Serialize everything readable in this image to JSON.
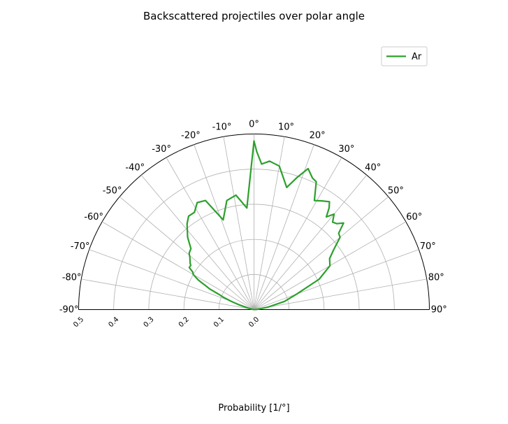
{
  "chart_data": {
    "type": "line",
    "projection": "polar-half",
    "title": "Backscattered projectiles over polar angle",
    "xlabel": "Probability [1/°]",
    "theta_zero": "top",
    "theta_range_deg": [
      -90,
      90
    ],
    "r_range": [
      0,
      0.5
    ],
    "grid": true,
    "legend_position": "top-right",
    "angle_ticks": [
      {
        "deg": -90,
        "label": "-90°"
      },
      {
        "deg": -80,
        "label": "-80°"
      },
      {
        "deg": -70,
        "label": "-70°"
      },
      {
        "deg": -60,
        "label": "-60°"
      },
      {
        "deg": -50,
        "label": "-50°"
      },
      {
        "deg": -40,
        "label": "-40°"
      },
      {
        "deg": -30,
        "label": "-30°"
      },
      {
        "deg": -20,
        "label": "-20°"
      },
      {
        "deg": -10,
        "label": "-10°"
      },
      {
        "deg": 0,
        "label": "0°"
      },
      {
        "deg": 10,
        "label": "10°"
      },
      {
        "deg": 20,
        "label": "20°"
      },
      {
        "deg": 30,
        "label": "30°"
      },
      {
        "deg": 40,
        "label": "40°"
      },
      {
        "deg": 50,
        "label": "50°"
      },
      {
        "deg": 60,
        "label": "60°"
      },
      {
        "deg": 70,
        "label": "70°"
      },
      {
        "deg": 80,
        "label": "80°"
      },
      {
        "deg": 90,
        "label": "90°"
      }
    ],
    "radial_ticks": [
      {
        "r": 0.0,
        "label": "0.0"
      },
      {
        "r": 0.1,
        "label": "0.1"
      },
      {
        "r": 0.2,
        "label": "0.2"
      },
      {
        "r": 0.3,
        "label": "0.3"
      },
      {
        "r": 0.4,
        "label": "0.4"
      },
      {
        "r": 0.5,
        "label": "0.5"
      }
    ],
    "series": [
      {
        "name": "Ar",
        "color": "#2ca02c",
        "theta_deg": [
          -90,
          -85,
          -81,
          -77,
          -73,
          -70,
          -68,
          -66.5,
          -65,
          -64,
          -63,
          -62,
          -61,
          -60,
          -58.5,
          -58,
          -57,
          -55,
          -54,
          -51,
          -49,
          -46,
          -42.5,
          -38,
          -35,
          -31.5,
          -28,
          -24,
          -19,
          -14,
          -9,
          -4,
          0,
          1,
          3,
          6,
          10,
          15,
          18,
          21,
          24,
          26,
          29,
          32,
          35,
          36.5,
          38,
          40,
          42,
          44,
          46,
          48,
          50,
          53,
          56,
          60,
          65,
          70,
          75,
          80,
          85,
          90
        ],
        "r": [
          0.0,
          0.0,
          0.0,
          0.01,
          0.04,
          0.07,
          0.095,
          0.11,
          0.14,
          0.15,
          0.165,
          0.18,
          0.19,
          0.2,
          0.205,
          0.21,
          0.22,
          0.22,
          0.225,
          0.235,
          0.245,
          0.25,
          0.28,
          0.31,
          0.325,
          0.325,
          0.345,
          0.34,
          0.27,
          0.32,
          0.33,
          0.29,
          0.48,
          0.45,
          0.415,
          0.425,
          0.415,
          0.36,
          0.395,
          0.43,
          0.41,
          0.405,
          0.355,
          0.365,
          0.375,
          0.36,
          0.335,
          0.355,
          0.335,
          0.34,
          0.355,
          0.325,
          0.32,
          0.285,
          0.26,
          0.25,
          0.205,
          0.13,
          0.09,
          0.04,
          0.01,
          0.0
        ]
      }
    ]
  }
}
